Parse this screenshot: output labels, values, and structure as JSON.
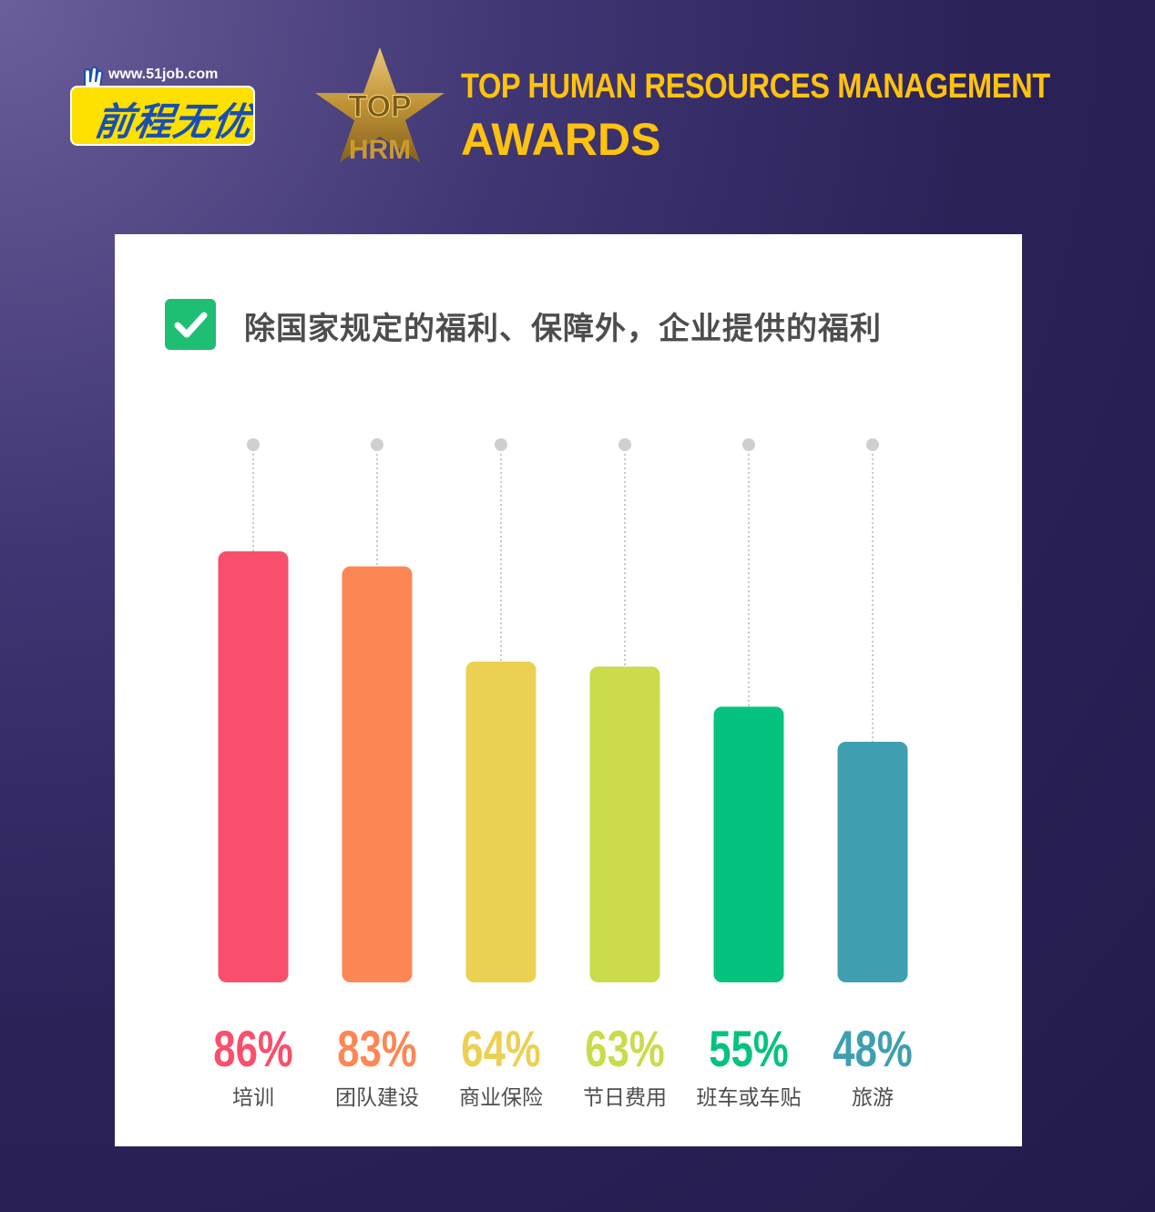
{
  "header": {
    "logo_url_text": "www.51job.com",
    "logo_brand_text": "前程无优",
    "award_logo_text_top": "TOP",
    "award_logo_text_bottom": "HRM",
    "award_title": "TOP HUMAN RESOURCES MANAGEMENT",
    "award_subtitle": "AWARDS"
  },
  "colors": {
    "award_gold": "#ffc20e",
    "check_green": "#1fbf73"
  },
  "chart_data": {
    "type": "bar",
    "title": "除国家规定的福利、保障外，企业提供的福利",
    "categories": [
      "培训",
      "团队建设",
      "商业保险",
      "节日费用",
      "班车或车贴",
      "旅游"
    ],
    "values": [
      86,
      83,
      64,
      63,
      55,
      48
    ],
    "value_labels": [
      "86%",
      "83%",
      "64%",
      "63%",
      "55%",
      "48%"
    ],
    "colors": [
      "#fa4f6c",
      "#fd8754",
      "#ecd052",
      "#cbdb4b",
      "#05c37e",
      "#3f9fb1"
    ],
    "unit": "%",
    "grid": false,
    "legend": "none"
  }
}
